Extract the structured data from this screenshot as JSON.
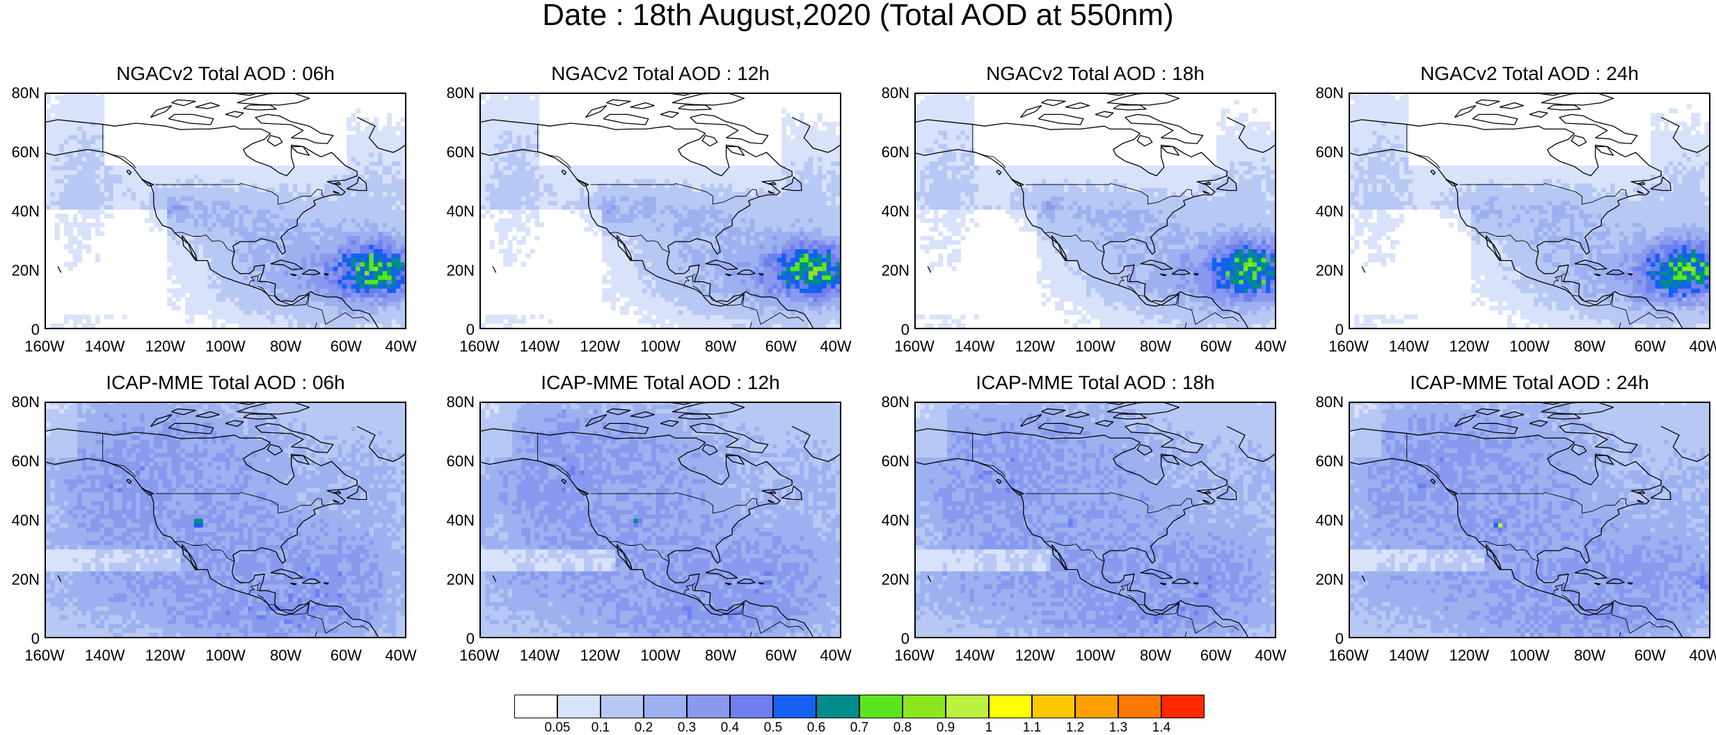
{
  "title": "Date : 18th August,2020 (Total AOD at 550nm)",
  "panels": [
    {
      "title": "NGACv2 Total AOD : 06h",
      "model": "ngac",
      "hour": "06h"
    },
    {
      "title": "NGACv2 Total AOD : 12h",
      "model": "ngac",
      "hour": "12h"
    },
    {
      "title": "NGACv2 Total AOD : 18h",
      "model": "ngac",
      "hour": "18h"
    },
    {
      "title": "NGACv2 Total AOD : 24h",
      "model": "ngac",
      "hour": "24h"
    },
    {
      "title": "ICAP-MME Total AOD : 06h",
      "model": "icap",
      "hour": "06h"
    },
    {
      "title": "ICAP-MME Total AOD : 12h",
      "model": "icap",
      "hour": "12h"
    },
    {
      "title": "ICAP-MME Total AOD : 18h",
      "model": "icap",
      "hour": "18h"
    },
    {
      "title": "ICAP-MME Total AOD : 24h",
      "model": "icap",
      "hour": "24h"
    }
  ],
  "axes": {
    "y_ticks": [
      "80N",
      "60N",
      "40N",
      "20N",
      "0"
    ],
    "x_ticks": [
      "160W",
      "140W",
      "120W",
      "100W",
      "80W",
      "60W",
      "40W"
    ],
    "lat_range": [
      0,
      80
    ],
    "lon_range": [
      -160,
      -40
    ]
  },
  "colorbar": {
    "labels": [
      "0.05",
      "0.1",
      "0.2",
      "0.3",
      "0.4",
      "0.5",
      "0.6",
      "0.7",
      "0.8",
      "0.9",
      "1",
      "1.1",
      "1.2",
      "1.3",
      "1.4"
    ],
    "colors": [
      "#ffffff",
      "#d8e2fa",
      "#b8c8f4",
      "#9db1f0",
      "#8899ee",
      "#6f7ff0",
      "#1560f0",
      "#008c8c",
      "#5ae61e",
      "#8ce61e",
      "#bef040",
      "#ffff00",
      "#ffc800",
      "#ffa000",
      "#ff7800",
      "#ff2800"
    ]
  }
}
